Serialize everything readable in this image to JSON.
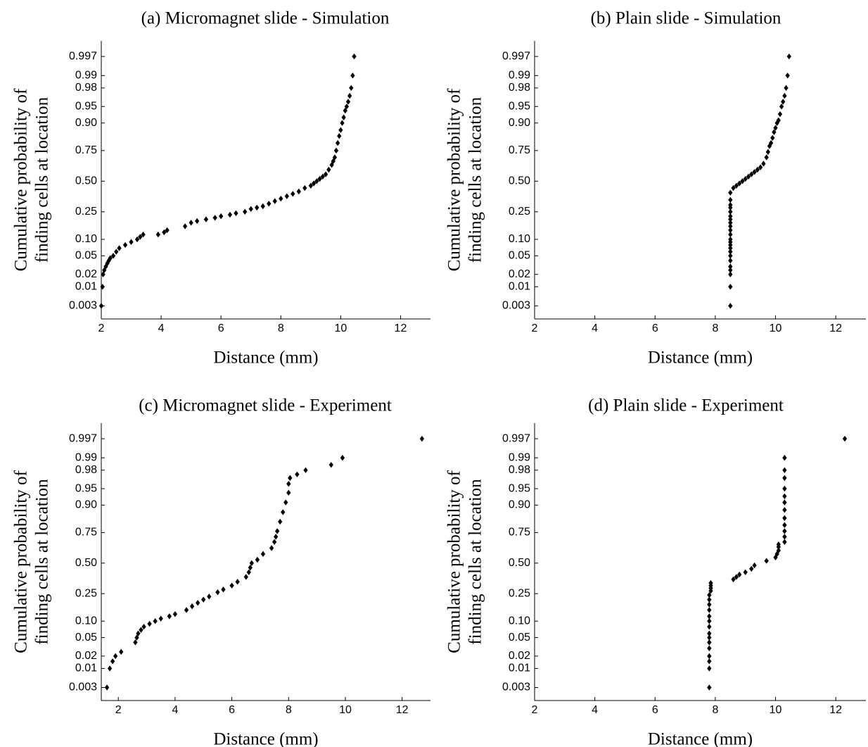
{
  "chart_data": [
    {
      "type": "scatter",
      "title": "(a) Micromagnet slide - Simulation",
      "xlabel": "Distance (mm)",
      "ylabel_lines": [
        "Cumulative probability of",
        "finding cells at location"
      ],
      "xlim": [
        2,
        13
      ],
      "x_ticks": [
        2,
        4,
        6,
        8,
        10,
        12
      ],
      "y_scale": "normal-probability",
      "y_ticks": [
        0.003,
        0.01,
        0.02,
        0.05,
        0.1,
        0.25,
        0.5,
        0.75,
        0.9,
        0.95,
        0.98,
        0.99,
        0.997
      ],
      "y_tick_labels": [
        "0.003",
        "0.01",
        "0.02",
        "0.05",
        "0.10",
        "0.25",
        "0.50",
        "0.75",
        "0.90",
        "0.95",
        "0.98",
        "0.99",
        "0.997"
      ],
      "marker": "diamond",
      "x": [
        2.0,
        2.04,
        2.06,
        2.1,
        2.15,
        2.2,
        2.25,
        2.3,
        2.4,
        2.5,
        2.6,
        2.8,
        3.0,
        3.2,
        3.3,
        3.4,
        3.9,
        4.1,
        4.2,
        4.8,
        5.0,
        5.2,
        5.5,
        5.8,
        6.0,
        6.3,
        6.5,
        6.8,
        7.0,
        7.2,
        7.4,
        7.6,
        7.8,
        8.0,
        8.2,
        8.4,
        8.6,
        8.8,
        9.0,
        9.1,
        9.2,
        9.3,
        9.4,
        9.5,
        9.6,
        9.7,
        9.75,
        9.8,
        9.85,
        9.9,
        9.95,
        10.0,
        10.05,
        10.1,
        10.15,
        10.2,
        10.25,
        10.3,
        10.35,
        10.4,
        10.45
      ],
      "y": [
        0.003,
        0.01,
        0.02,
        0.025,
        0.03,
        0.035,
        0.04,
        0.045,
        0.05,
        0.06,
        0.07,
        0.08,
        0.09,
        0.1,
        0.11,
        0.12,
        0.12,
        0.13,
        0.14,
        0.16,
        0.18,
        0.19,
        0.2,
        0.21,
        0.22,
        0.23,
        0.24,
        0.25,
        0.27,
        0.28,
        0.29,
        0.31,
        0.33,
        0.35,
        0.37,
        0.39,
        0.41,
        0.44,
        0.46,
        0.48,
        0.5,
        0.52,
        0.54,
        0.56,
        0.6,
        0.64,
        0.67,
        0.7,
        0.75,
        0.8,
        0.84,
        0.87,
        0.9,
        0.92,
        0.94,
        0.95,
        0.96,
        0.97,
        0.98,
        0.99,
        0.997
      ]
    },
    {
      "type": "scatter",
      "title": "(b) Plain slide - Simulation",
      "xlabel": "Distance (mm)",
      "ylabel_lines": [
        "Cumulative probability of",
        "finding cells at location"
      ],
      "xlim": [
        2,
        13
      ],
      "x_ticks": [
        2,
        4,
        6,
        8,
        10,
        12
      ],
      "y_scale": "normal-probability",
      "y_ticks": [
        0.003,
        0.01,
        0.02,
        0.05,
        0.1,
        0.25,
        0.5,
        0.75,
        0.9,
        0.95,
        0.98,
        0.99,
        0.997
      ],
      "y_tick_labels": [
        "0.003",
        "0.01",
        "0.02",
        "0.05",
        "0.10",
        "0.25",
        "0.50",
        "0.75",
        "0.90",
        "0.95",
        "0.98",
        "0.99",
        "0.997"
      ],
      "marker": "diamond",
      "x": [
        8.5,
        8.5,
        8.5,
        8.5,
        8.5,
        8.5,
        8.5,
        8.5,
        8.5,
        8.5,
        8.5,
        8.5,
        8.5,
        8.5,
        8.5,
        8.5,
        8.5,
        8.5,
        8.5,
        8.5,
        8.5,
        8.5,
        8.5,
        8.6,
        8.7,
        8.8,
        8.9,
        9.0,
        9.1,
        9.2,
        9.3,
        9.4,
        9.5,
        9.6,
        9.7,
        9.75,
        9.8,
        9.85,
        9.9,
        9.95,
        10.0,
        10.05,
        10.1,
        10.15,
        10.2,
        10.25,
        10.3,
        10.35,
        10.4,
        10.45
      ],
      "y": [
        0.003,
        0.01,
        0.02,
        0.025,
        0.03,
        0.04,
        0.05,
        0.06,
        0.07,
        0.08,
        0.09,
        0.1,
        0.12,
        0.14,
        0.16,
        0.18,
        0.2,
        0.22,
        0.25,
        0.28,
        0.3,
        0.34,
        0.4,
        0.44,
        0.46,
        0.48,
        0.5,
        0.52,
        0.54,
        0.56,
        0.58,
        0.6,
        0.62,
        0.65,
        0.7,
        0.74,
        0.78,
        0.8,
        0.83,
        0.86,
        0.88,
        0.9,
        0.91,
        0.93,
        0.95,
        0.96,
        0.97,
        0.98,
        0.99,
        0.997
      ]
    },
    {
      "type": "scatter",
      "title": "(c) Micromagnet slide - Experiment",
      "xlabel": "Distance (mm)",
      "ylabel_lines": [
        "Cumulative probability of",
        "finding cells at location"
      ],
      "xlim": [
        1.4,
        13
      ],
      "x_ticks": [
        2,
        4,
        6,
        8,
        10,
        12
      ],
      "y_scale": "normal-probability",
      "y_ticks": [
        0.003,
        0.01,
        0.02,
        0.05,
        0.1,
        0.25,
        0.5,
        0.75,
        0.9,
        0.95,
        0.98,
        0.99,
        0.997
      ],
      "y_tick_labels": [
        "0.003",
        "0.01",
        "0.02",
        "0.05",
        "0.10",
        "0.25",
        "0.50",
        "0.75",
        "0.90",
        "0.95",
        "0.98",
        "0.99",
        "0.997"
      ],
      "marker": "diamond",
      "x": [
        1.6,
        1.7,
        1.8,
        1.9,
        2.1,
        2.6,
        2.65,
        2.7,
        2.8,
        2.9,
        3.1,
        3.3,
        3.5,
        3.8,
        4.0,
        4.4,
        4.6,
        4.8,
        5.0,
        5.2,
        5.5,
        5.7,
        6.0,
        6.2,
        6.5,
        6.6,
        6.65,
        6.7,
        6.9,
        7.1,
        7.4,
        7.5,
        7.55,
        7.6,
        7.7,
        7.8,
        7.9,
        8.0,
        8.0,
        8.05,
        8.3,
        8.6,
        9.5,
        9.9,
        12.7
      ],
      "y": [
        0.003,
        0.01,
        0.015,
        0.02,
        0.025,
        0.04,
        0.05,
        0.06,
        0.07,
        0.08,
        0.09,
        0.1,
        0.11,
        0.12,
        0.13,
        0.15,
        0.17,
        0.19,
        0.21,
        0.23,
        0.26,
        0.28,
        0.31,
        0.34,
        0.38,
        0.42,
        0.46,
        0.5,
        0.53,
        0.58,
        0.63,
        0.68,
        0.72,
        0.76,
        0.82,
        0.87,
        0.91,
        0.94,
        0.96,
        0.97,
        0.975,
        0.98,
        0.985,
        0.99,
        0.997
      ]
    },
    {
      "type": "scatter",
      "title": "(d) Plain slide - Experiment",
      "xlabel": "Distance (mm)",
      "ylabel_lines": [
        "Cumulative probability of",
        "finding cells at location"
      ],
      "xlim": [
        2,
        13
      ],
      "x_ticks": [
        2,
        4,
        6,
        8,
        10,
        12
      ],
      "y_scale": "normal-probability",
      "y_ticks": [
        0.003,
        0.01,
        0.02,
        0.05,
        0.1,
        0.25,
        0.5,
        0.75,
        0.9,
        0.95,
        0.98,
        0.99,
        0.997
      ],
      "y_tick_labels": [
        "0.003",
        "0.01",
        "0.02",
        "0.05",
        "0.10",
        "0.25",
        "0.50",
        "0.75",
        "0.90",
        "0.95",
        "0.98",
        "0.99",
        "0.997"
      ],
      "marker": "diamond",
      "x": [
        7.8,
        7.8,
        7.8,
        7.8,
        7.8,
        7.8,
        7.8,
        7.8,
        7.8,
        7.8,
        7.8,
        7.8,
        7.8,
        7.8,
        7.8,
        7.85,
        7.85,
        7.85,
        7.85,
        8.6,
        8.7,
        8.8,
        9.0,
        9.2,
        9.3,
        9.7,
        10.0,
        10.05,
        10.1,
        10.1,
        10.1,
        10.3,
        10.3,
        10.3,
        10.3,
        10.3,
        10.3,
        10.3,
        10.3,
        10.3,
        10.3,
        10.3,
        10.3,
        12.3
      ],
      "y": [
        0.003,
        0.01,
        0.015,
        0.02,
        0.03,
        0.04,
        0.05,
        0.06,
        0.08,
        0.1,
        0.12,
        0.15,
        0.18,
        0.21,
        0.24,
        0.27,
        0.29,
        0.31,
        0.33,
        0.36,
        0.38,
        0.4,
        0.42,
        0.45,
        0.48,
        0.52,
        0.55,
        0.58,
        0.61,
        0.64,
        0.66,
        0.68,
        0.72,
        0.76,
        0.8,
        0.84,
        0.88,
        0.91,
        0.93,
        0.95,
        0.97,
        0.98,
        0.99,
        0.997
      ]
    }
  ]
}
